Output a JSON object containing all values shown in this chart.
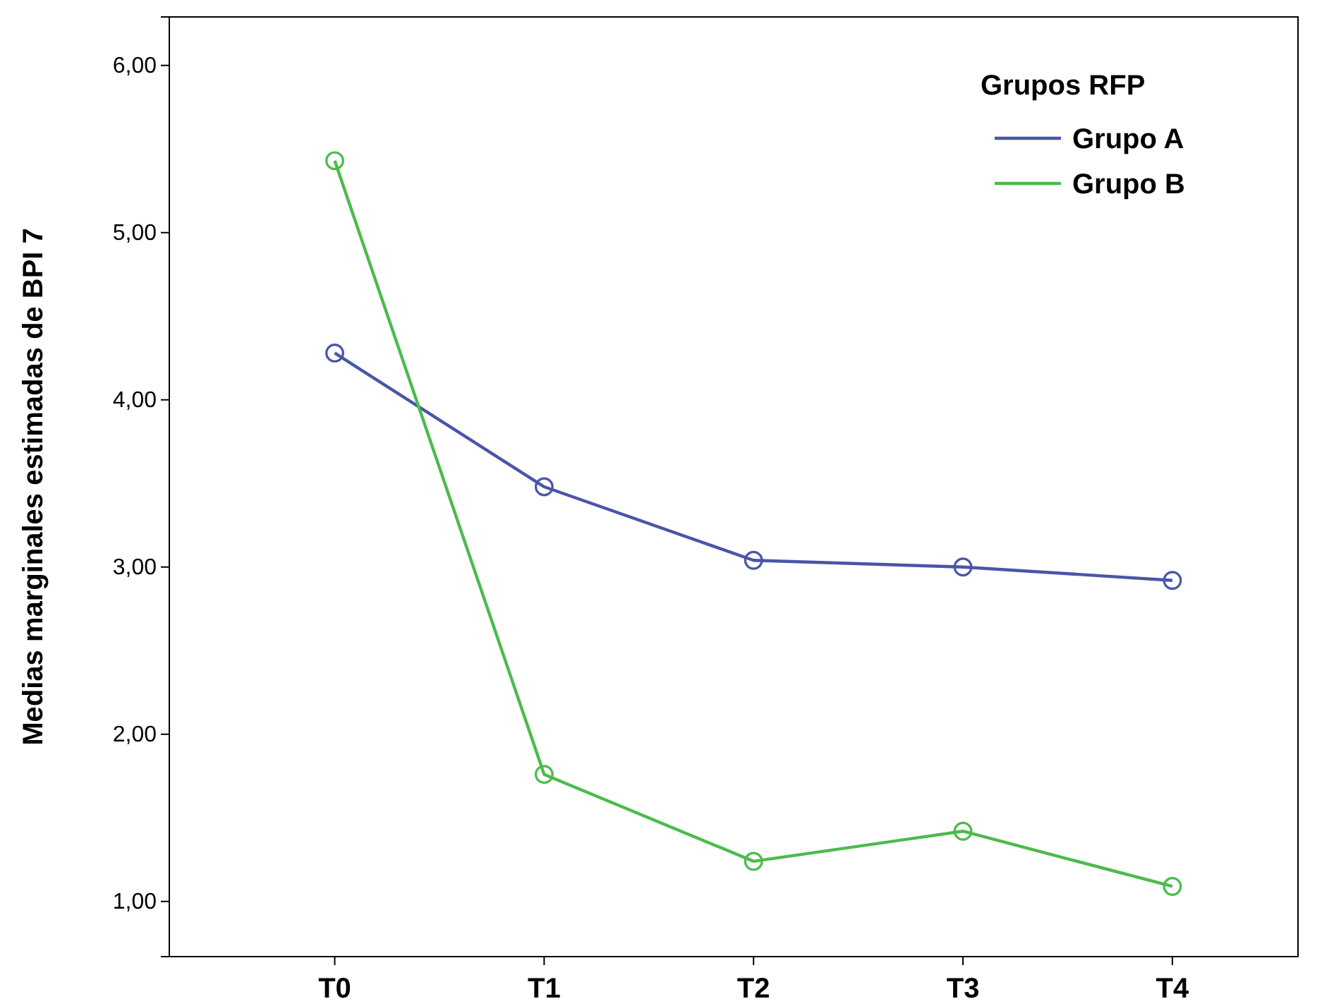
{
  "chart_data": {
    "type": "line",
    "ylabel": "Medias marginales estimadas de BPI 7",
    "legend_title": "Grupos RFP",
    "categories": [
      "T0",
      "T1",
      "T2",
      "T3",
      "T4"
    ],
    "series": [
      {
        "name": "Grupo A",
        "color": "#4a55a8",
        "values": [
          4.28,
          3.48,
          3.04,
          3.0,
          2.92
        ]
      },
      {
        "name": "Grupo B",
        "color": "#4cbb4c",
        "values": [
          5.43,
          1.76,
          1.24,
          1.42,
          1.09
        ]
      }
    ],
    "ylim": [
      0.67,
      6.29
    ],
    "yticks": [
      {
        "value": 1,
        "label": "1,00"
      },
      {
        "value": 2,
        "label": "2,00"
      },
      {
        "value": 3,
        "label": "3,00"
      },
      {
        "value": 4,
        "label": "4,00"
      },
      {
        "value": 5,
        "label": "5,00"
      },
      {
        "value": 6,
        "label": "6,00"
      }
    ],
    "grid": false,
    "legend": "top right",
    "marker": "circle",
    "line_style": "solid"
  }
}
